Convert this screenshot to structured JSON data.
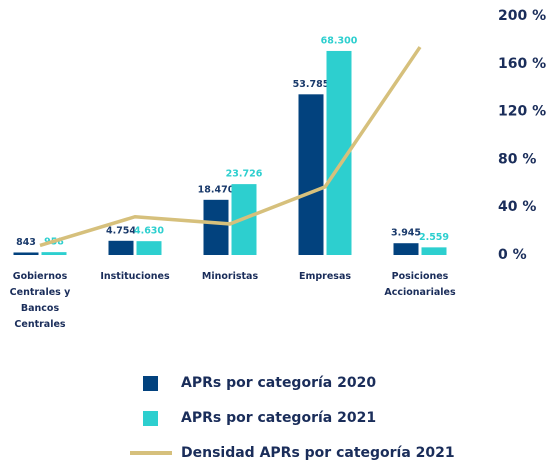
{
  "chart_data": {
    "type": "bar",
    "categories": [
      "Gobiernos Centrales y Bancos Centrales",
      "Instituciones",
      "Minoristas",
      "Empresas",
      "Posiciones Accionariales"
    ],
    "series": [
      {
        "name": "APRs por categoría 2020",
        "color": "#02427e",
        "values": [
          843,
          4754,
          18470,
          53785,
          3945
        ],
        "value_labels": [
          "843",
          "4.754",
          "18.470",
          "53.785",
          "3.945"
        ]
      },
      {
        "name": "APRs por categoría 2021",
        "color": "#2dcfcf",
        "values": [
          958,
          4630,
          23726,
          68300,
          2559
        ],
        "value_labels": [
          "958",
          "4.630",
          "23.726",
          "68.300",
          "2.559"
        ]
      },
      {
        "name": "Densidad APRs por categoría 2021",
        "type": "line",
        "axis": "y2",
        "color": "#d6c07c",
        "values": [
          8,
          32,
          26,
          57,
          174
        ]
      }
    ],
    "ylim": [
      0,
      80000
    ],
    "y2lim": [
      0,
      200
    ],
    "y2ticks": [
      {
        "value": 0,
        "label": "0 %"
      },
      {
        "value": 40,
        "label": "40 %"
      },
      {
        "value": 80,
        "label": "80 %"
      },
      {
        "value": 120,
        "label": "120 %"
      },
      {
        "value": 160,
        "label": "160 %"
      },
      {
        "value": 200,
        "label": "200 %"
      }
    ]
  }
}
